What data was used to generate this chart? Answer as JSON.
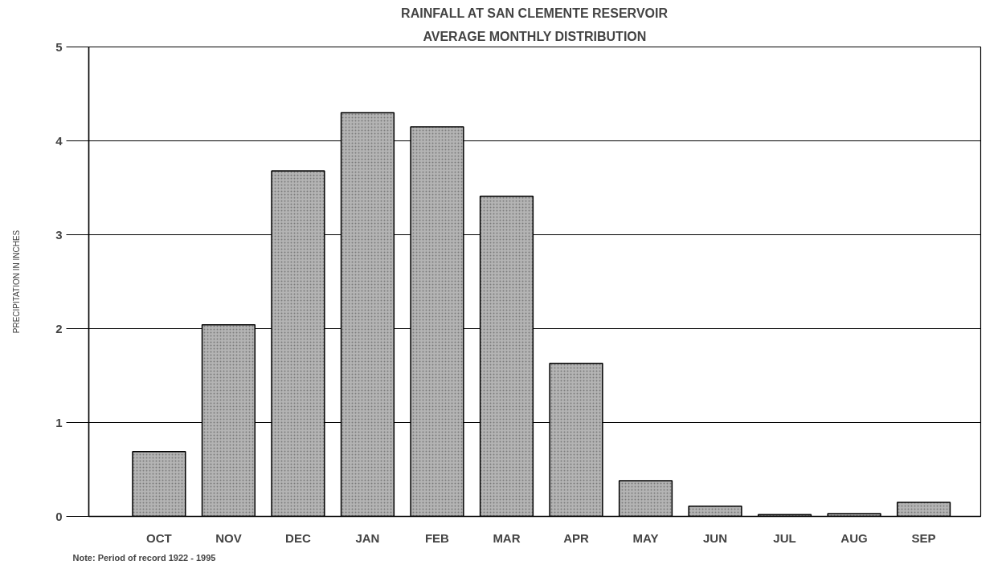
{
  "chart_data": {
    "type": "bar",
    "title": "RAINFALL AT SAN CLEMENTE RESERVOIR",
    "subtitle": "AVERAGE MONTHLY DISTRIBUTION",
    "ylabel": "PRECIPITATION IN INCHES",
    "annotations": [
      "Note:  Period of record 1922 - 1995"
    ],
    "categories": [
      "OCT",
      "NOV",
      "DEC",
      "JAN",
      "FEB",
      "MAR",
      "APR",
      "MAY",
      "JUN",
      "JUL",
      "AUG",
      "SEP"
    ],
    "values": [
      0.69,
      2.04,
      3.68,
      4.3,
      4.15,
      3.41,
      1.63,
      0.38,
      0.11,
      0.02,
      0.03,
      0.15
    ],
    "color": "#b4b4b4",
    "ylim": [
      0,
      5
    ],
    "yticks": [
      0,
      1,
      2,
      3,
      4,
      5
    ],
    "grid": "y"
  }
}
